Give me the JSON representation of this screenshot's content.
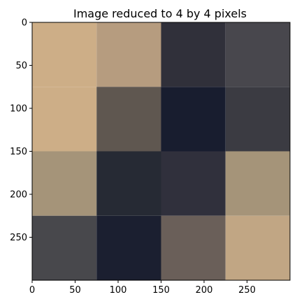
{
  "chart_data": {
    "type": "heatmap",
    "title": "Image reduced to 4 by 4 pixels",
    "xlabel": "",
    "ylabel": "",
    "xlim": [
      0,
      300
    ],
    "ylim": [
      300,
      0
    ],
    "x_ticks": [
      "0",
      "50",
      "100",
      "150",
      "200",
      "250"
    ],
    "y_ticks": [
      "0",
      "50",
      "100",
      "150",
      "200",
      "250"
    ],
    "grid": false,
    "cell_size": 75,
    "rows": 4,
    "cols": 4,
    "pixels": [
      [
        "#cdae87",
        "#b69c7f",
        "#30303a",
        "#48474d"
      ],
      [
        "#cdae87",
        "#5f5750",
        "#181d2f",
        "#3b3b42"
      ],
      [
        "#a59479",
        "#262a34",
        "#30303c",
        "#a59479"
      ],
      [
        "#48484c",
        "#1b1f30",
        "#6a5f59",
        "#c1a684"
      ]
    ]
  }
}
